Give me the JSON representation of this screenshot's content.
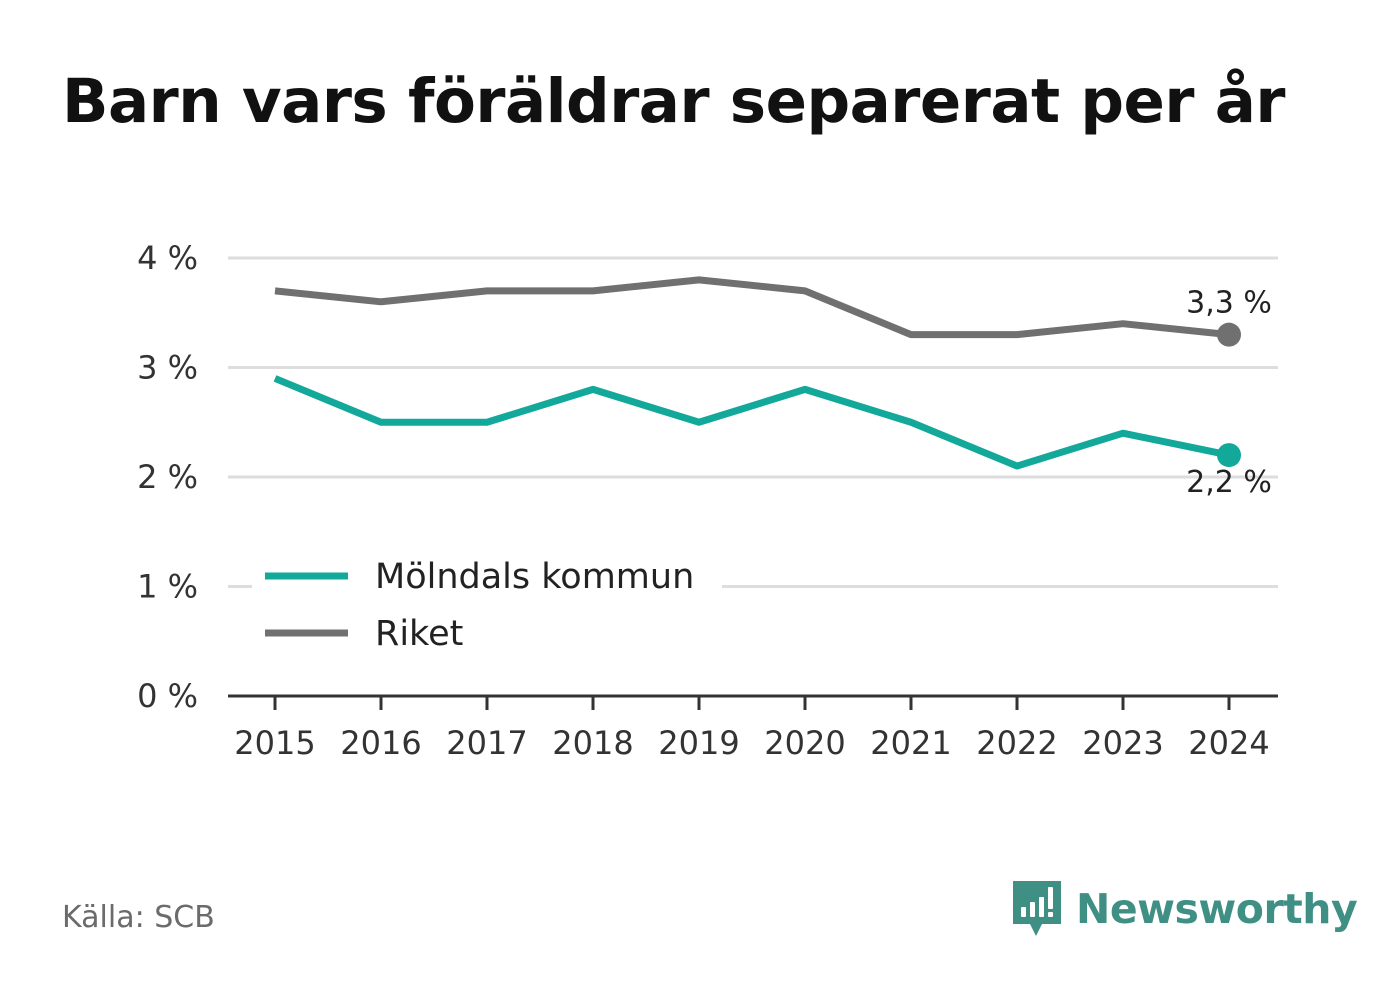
{
  "title": "Barn vars föräldrar separerat per år",
  "source": "Källa: SCB",
  "brand": {
    "name": "Newsworthy",
    "icon": "newsworthy-logo-icon"
  },
  "colors": {
    "molndal": "#12a89a",
    "riket": "#707070",
    "grid": "#dddddd",
    "axis": "#333333",
    "text": "#333333"
  },
  "chart_data": {
    "type": "line",
    "x": [
      "2015",
      "2016",
      "2017",
      "2018",
      "2019",
      "2020",
      "2021",
      "2022",
      "2023",
      "2024"
    ],
    "y_ticks": [
      "0 %",
      "1 %",
      "2 %",
      "3 %",
      "4 %"
    ],
    "ylim": [
      0,
      4
    ],
    "grid": true,
    "legend_placement": "bottom-left",
    "series": [
      {
        "name": "Mölndals kommun",
        "color": "#12a89a",
        "values": [
          2.9,
          2.5,
          2.5,
          2.8,
          2.5,
          2.8,
          2.5,
          2.1,
          2.4,
          2.2
        ],
        "end_label": "2,2 %"
      },
      {
        "name": "Riket",
        "color": "#707070",
        "values": [
          3.7,
          3.6,
          3.7,
          3.7,
          3.8,
          3.7,
          3.3,
          3.3,
          3.4,
          3.3
        ],
        "end_label": "3,3 %"
      }
    ]
  }
}
